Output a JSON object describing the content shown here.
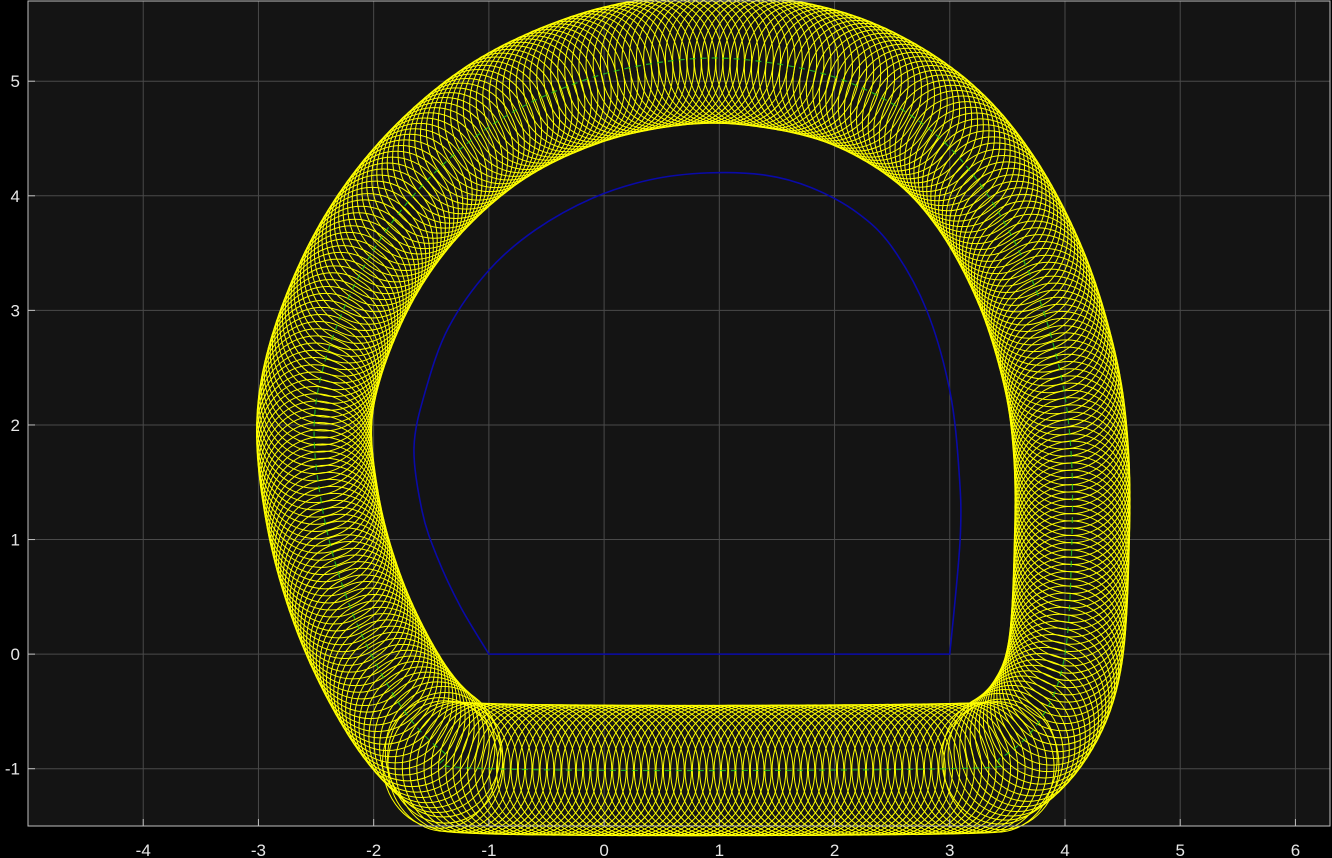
{
  "chart_data": {
    "type": "line",
    "title": "",
    "xlabel": "",
    "ylabel": "",
    "xlim": [
      -5.0,
      6.3
    ],
    "ylim": [
      -1.5,
      5.7
    ],
    "x_ticks": [
      -4,
      -3,
      -2,
      -1,
      0,
      1,
      2,
      3,
      4,
      5,
      6
    ],
    "y_ticks": [
      -1,
      0,
      1,
      2,
      3,
      4,
      5
    ],
    "grid": true,
    "background_color": "#141414",
    "figure_color": "#000000",
    "grid_color": "#4a4a4a",
    "axis_color": "#bfbfbf",
    "series": [
      {
        "kind": "closed-curve",
        "color": "#0a0aa8",
        "points": [
          [
            -1.0,
            0.0
          ],
          [
            3.0,
            0.0
          ],
          [
            3.09,
            1.0
          ],
          [
            3.08,
            1.6
          ],
          [
            3.0,
            2.3
          ],
          [
            2.8,
            3.0
          ],
          [
            2.5,
            3.55
          ],
          [
            2.2,
            3.85
          ],
          [
            1.8,
            4.07
          ],
          [
            1.4,
            4.18
          ],
          [
            0.9,
            4.2
          ],
          [
            0.4,
            4.14
          ],
          [
            -0.1,
            3.98
          ],
          [
            -0.6,
            3.7
          ],
          [
            -1.0,
            3.35
          ],
          [
            -1.35,
            2.85
          ],
          [
            -1.55,
            2.3
          ],
          [
            -1.65,
            1.8
          ],
          [
            -1.58,
            1.25
          ],
          [
            -1.45,
            0.85
          ],
          [
            -1.25,
            0.42
          ]
        ]
      },
      {
        "kind": "center-path",
        "color": "#22cc22",
        "points": [
          [
            -1.0,
            -1.0
          ],
          [
            3.0,
            -1.0
          ],
          [
            3.45,
            -0.9
          ],
          [
            3.8,
            -0.55
          ],
          [
            4.0,
            0.0
          ],
          [
            4.06,
            1.0
          ],
          [
            4.05,
            1.8
          ],
          [
            3.95,
            2.5
          ],
          [
            3.7,
            3.3
          ],
          [
            3.3,
            4.05
          ],
          [
            2.8,
            4.6
          ],
          [
            2.1,
            5.0
          ],
          [
            1.3,
            5.18
          ],
          [
            0.6,
            5.18
          ],
          [
            -0.2,
            5.0
          ],
          [
            -1.0,
            4.6
          ],
          [
            -1.7,
            3.95
          ],
          [
            -2.2,
            3.15
          ],
          [
            -2.5,
            2.2
          ],
          [
            -2.45,
            1.3
          ],
          [
            -2.2,
            0.4
          ],
          [
            -1.8,
            -0.4
          ],
          [
            -1.4,
            -0.85
          ]
        ]
      },
      {
        "kind": "swept-ellipses",
        "color": "#ffff00",
        "ellipse_radii": [
          0.5,
          0.57
        ],
        "count": 340
      }
    ]
  }
}
